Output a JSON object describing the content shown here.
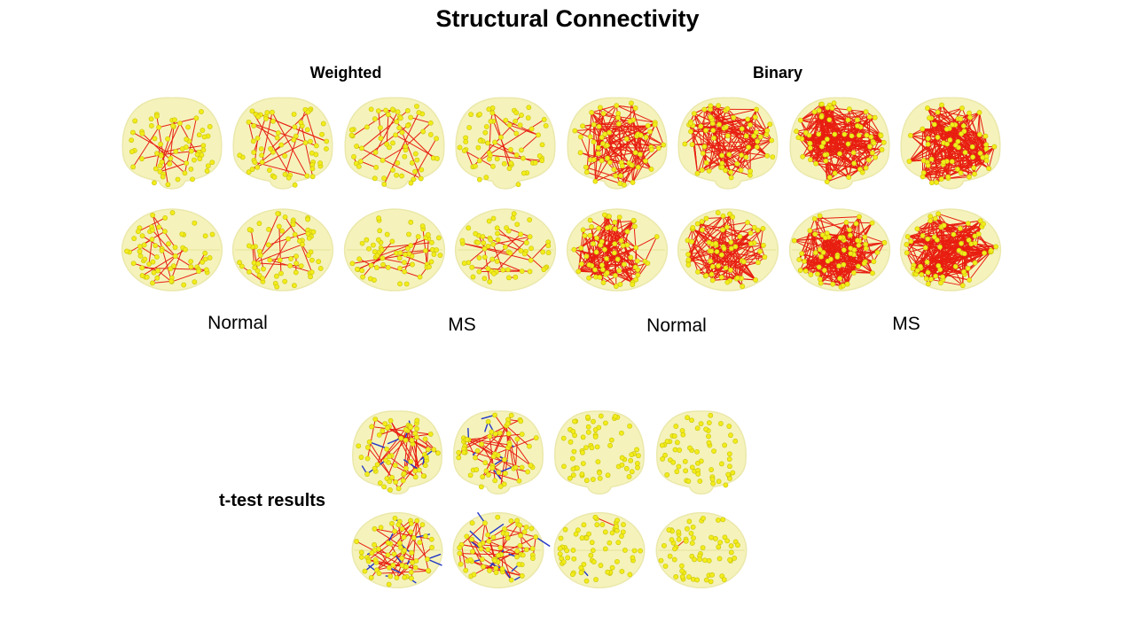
{
  "title": "Structural Connectivity",
  "groups": {
    "weighted": "Weighted",
    "binary": "Binary"
  },
  "conditions": {
    "weighted_normal": "Normal",
    "weighted_ms": "MS",
    "binary_normal": "Normal",
    "binary_ms": "MS"
  },
  "ttest_label": "t-test results",
  "colors": {
    "node": "#f2ec1a",
    "edge_pos": "#e81e10",
    "edge_neg": "#2236c8",
    "brain": "#f4f2b4"
  }
}
